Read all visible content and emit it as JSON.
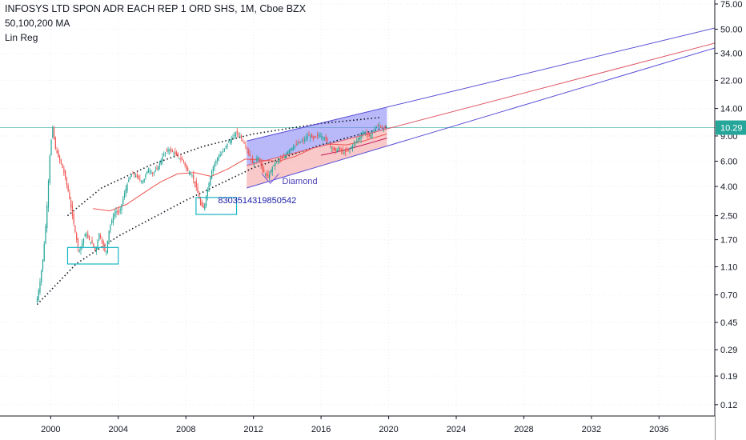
{
  "header": {
    "title": "INFOSYS LTD SPON ADR EACH REP 1 ORD SHS, 1M, Cboe BZX",
    "indicator_1": "50,100,200 MA",
    "indicator_2": "Lin Reg"
  },
  "chart_data": {
    "type": "candlestick",
    "interval": "1M",
    "exchange": "Cboe BZX",
    "y_scale": "log",
    "ylim": [
      0.1,
      80
    ],
    "xlim": [
      1997.0,
      2039.3
    ],
    "x_ticks": [
      "2000",
      "2004",
      "2008",
      "2012",
      "2016",
      "2020",
      "2024",
      "2028",
      "2032",
      "2036"
    ],
    "y_ticks": [
      "75.00",
      "50.00",
      "34.00",
      "22.00",
      "14.00",
      "9.00",
      "6.00",
      "4.00",
      "2.50",
      "1.70",
      "1.10",
      "0.70",
      "0.45",
      "0.29",
      "0.19",
      "0.12"
    ],
    "last_price": "10.29",
    "price_path": [
      [
        1999.2,
        0.62
      ],
      [
        1999.4,
        0.85
      ],
      [
        1999.6,
        1.3
      ],
      [
        1999.8,
        2.6
      ],
      [
        2000.0,
        6.8
      ],
      [
        2000.15,
        10.5
      ],
      [
        2000.3,
        7.5
      ],
      [
        2000.5,
        6.4
      ],
      [
        2000.7,
        5.6
      ],
      [
        2000.9,
        4.6
      ],
      [
        2001.1,
        3.6
      ],
      [
        2001.3,
        2.6
      ],
      [
        2001.5,
        1.9
      ],
      [
        2001.7,
        1.4
      ],
      [
        2001.9,
        1.6
      ],
      [
        2002.1,
        1.9
      ],
      [
        2002.3,
        1.7
      ],
      [
        2002.5,
        1.6
      ],
      [
        2002.7,
        1.4
      ],
      [
        2002.9,
        1.9
      ],
      [
        2003.1,
        1.6
      ],
      [
        2003.3,
        1.35
      ],
      [
        2003.5,
        2.0
      ],
      [
        2003.7,
        2.4
      ],
      [
        2003.9,
        2.7
      ],
      [
        2004.1,
        2.6
      ],
      [
        2004.3,
        3.2
      ],
      [
        2004.5,
        3.9
      ],
      [
        2004.7,
        4.6
      ],
      [
        2004.9,
        4.9
      ],
      [
        2005.2,
        4.6
      ],
      [
        2005.5,
        4.3
      ],
      [
        2005.8,
        5.3
      ],
      [
        2006.1,
        4.9
      ],
      [
        2006.4,
        5.5
      ],
      [
        2006.7,
        6.6
      ],
      [
        2007.0,
        7.3
      ],
      [
        2007.3,
        6.9
      ],
      [
        2007.6,
        6.4
      ],
      [
        2007.9,
        6.0
      ],
      [
        2008.1,
        5.2
      ],
      [
        2008.4,
        4.8
      ],
      [
        2008.7,
        3.8
      ],
      [
        2008.9,
        3.0
      ],
      [
        2009.1,
        2.8
      ],
      [
        2009.3,
        3.7
      ],
      [
        2009.6,
        5.3
      ],
      [
        2009.9,
        6.3
      ],
      [
        2010.2,
        6.9
      ],
      [
        2010.5,
        8.0
      ],
      [
        2010.8,
        8.7
      ],
      [
        2011.0,
        9.5
      ],
      [
        2011.2,
        9.2
      ],
      [
        2011.5,
        8.0
      ],
      [
        2011.8,
        6.6
      ],
      [
        2012.0,
        5.8
      ],
      [
        2012.3,
        6.5
      ],
      [
        2012.6,
        5.1
      ],
      [
        2012.9,
        4.6
      ],
      [
        2013.2,
        5.6
      ],
      [
        2013.5,
        6.1
      ],
      [
        2013.8,
        6.3
      ],
      [
        2014.1,
        7.1
      ],
      [
        2014.4,
        7.6
      ],
      [
        2014.7,
        8.0
      ],
      [
        2015.0,
        8.4
      ],
      [
        2015.3,
        9.1
      ],
      [
        2015.6,
        8.6
      ],
      [
        2015.9,
        9.2
      ],
      [
        2016.2,
        8.8
      ],
      [
        2016.5,
        8.0
      ],
      [
        2016.8,
        7.1
      ],
      [
        2017.1,
        7.3
      ],
      [
        2017.4,
        6.9
      ],
      [
        2017.7,
        7.2
      ],
      [
        2018.0,
        8.0
      ],
      [
        2018.3,
        8.8
      ],
      [
        2018.6,
        9.6
      ],
      [
        2018.9,
        8.9
      ],
      [
        2019.2,
        10.1
      ],
      [
        2019.5,
        10.8
      ],
      [
        2019.7,
        10.0
      ],
      [
        2019.9,
        10.29
      ]
    ],
    "ma_lines": [
      {
        "color": "#ef5350",
        "points": [
          [
            2002.5,
            2.8
          ],
          [
            2003.5,
            2.7
          ],
          [
            2004.5,
            3.0
          ],
          [
            2005.5,
            3.6
          ],
          [
            2006.5,
            4.3
          ],
          [
            2007.5,
            4.9
          ],
          [
            2008.5,
            5.0
          ],
          [
            2009.5,
            4.7
          ],
          [
            2010.5,
            5.3
          ],
          [
            2011.5,
            6.2
          ],
          [
            2012.5,
            6.1
          ],
          [
            2013.5,
            6.0
          ],
          [
            2014.5,
            6.5
          ],
          [
            2015.5,
            7.4
          ],
          [
            2016.5,
            7.9
          ],
          [
            2017.5,
            7.8
          ],
          [
            2018.5,
            8.3
          ],
          [
            2019.9,
            9.3
          ]
        ]
      },
      {
        "color": "#c2185b",
        "points": [
          [
            2016.0,
            6.6
          ],
          [
            2017.0,
            7.0
          ],
          [
            2018.0,
            7.5
          ],
          [
            2019.0,
            8.1
          ],
          [
            2019.9,
            8.7
          ]
        ]
      }
    ],
    "fibonacci_arcs": [
      {
        "points": [
          [
            1999.2,
            0.6
          ],
          [
            2001.5,
            1.15
          ],
          [
            2004.0,
            1.8
          ],
          [
            2008.0,
            3.2
          ],
          [
            2012.0,
            5.4
          ],
          [
            2016.0,
            7.8
          ],
          [
            2019.9,
            10.4
          ]
        ]
      },
      {
        "points": [
          [
            2001.0,
            2.5
          ],
          [
            2003.0,
            3.9
          ],
          [
            2006.0,
            5.7
          ],
          [
            2009.0,
            7.6
          ],
          [
            2012.0,
            9.3
          ],
          [
            2016.0,
            11.0
          ],
          [
            2019.5,
            12.1
          ]
        ]
      }
    ],
    "regression_channel": {
      "x_start": 2011.6,
      "x_end": 2039.3,
      "upper": [
        [
          2011.6,
          8.3
        ],
        [
          2039.3,
          51.0
        ]
      ],
      "middle": [
        [
          2011.6,
          5.6
        ],
        [
          2039.3,
          40.0
        ]
      ],
      "lower": [
        [
          2011.6,
          3.9
        ],
        [
          2039.3,
          37.0
        ]
      ],
      "band_end": 2019.9
    },
    "boxes": [
      {
        "x0": 2001.0,
        "x1": 2004.0,
        "y_low": 1.15,
        "y_high": 1.5
      },
      {
        "x0": 2008.6,
        "x1": 2011.0,
        "y_low": 2.55,
        "y_high": 3.35
      }
    ],
    "annotations": [
      {
        "text": "Diamond",
        "x": 2013.7,
        "y": 4.15,
        "color": "#4b3fb5"
      },
      {
        "text": "8303514319850542",
        "x": 2009.9,
        "y": 3.05,
        "color": "#1a1aa6"
      }
    ],
    "grid": true,
    "colors": {
      "up": "#26a69a",
      "down": "#ef5350",
      "last_price_line": "#26a69a",
      "channel_upper_fill": "#7f7ff5",
      "channel_lower_fill": "#f5a3a3"
    }
  }
}
